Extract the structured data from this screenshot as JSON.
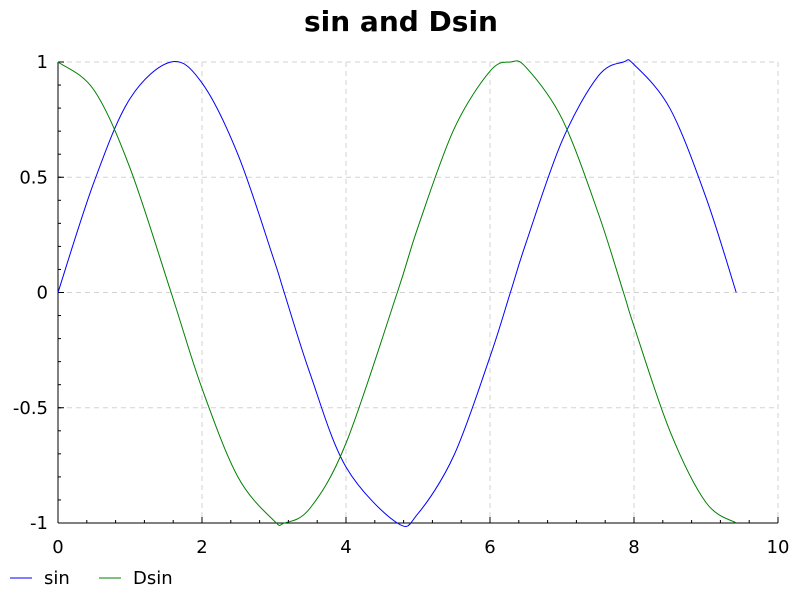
{
  "chart_data": {
    "type": "line",
    "title": "sin and Dsin",
    "xlabel": "",
    "ylabel": "",
    "xlim": [
      0,
      10
    ],
    "ylim": [
      -1,
      1
    ],
    "x_ticks": [
      0,
      2,
      4,
      6,
      8,
      10
    ],
    "x_tick_labels": [
      "0",
      "2",
      "4",
      "6",
      "8",
      "10"
    ],
    "y_ticks": [
      -1,
      -0.5,
      0,
      0.5,
      1
    ],
    "y_tick_labels": [
      "-1",
      "-0.5",
      "0",
      "0.5",
      "1"
    ],
    "grid": true,
    "legend_position": "bottom-left",
    "x_range": [
      0,
      9.42
    ],
    "series": [
      {
        "name": "sin",
        "color": "#0000ff",
        "x": [
          0,
          0.5,
          1,
          1.5708,
          2,
          2.5,
          3,
          3.1416,
          3.5,
          4,
          4.7124,
          5,
          5.5,
          6,
          6.2832,
          6.5,
          7,
          7.5,
          7.854,
          8,
          8.5,
          9,
          9.42
        ],
        "y": [
          0,
          0.479,
          0.841,
          1,
          0.909,
          0.598,
          0.141,
          0,
          -0.351,
          -0.757,
          -1,
          -0.959,
          -0.706,
          -0.279,
          0,
          0.215,
          0.657,
          0.938,
          1,
          0.989,
          0.798,
          0.412,
          0
        ]
      },
      {
        "name": "Dsin",
        "color": "#008000",
        "x": [
          0,
          0.5,
          1,
          1.5708,
          2,
          2.5,
          3,
          3.1416,
          3.5,
          4,
          4.7124,
          5,
          5.5,
          6,
          6.2832,
          6.5,
          7,
          7.5,
          7.854,
          8,
          8.5,
          9,
          9.42
        ],
        "y": [
          1,
          0.878,
          0.54,
          0,
          -0.416,
          -0.801,
          -0.99,
          -1,
          -0.936,
          -0.654,
          0,
          0.284,
          0.709,
          0.96,
          1,
          0.977,
          0.754,
          0.347,
          0,
          -0.146,
          -0.602,
          -0.911,
          -1
        ]
      }
    ]
  }
}
